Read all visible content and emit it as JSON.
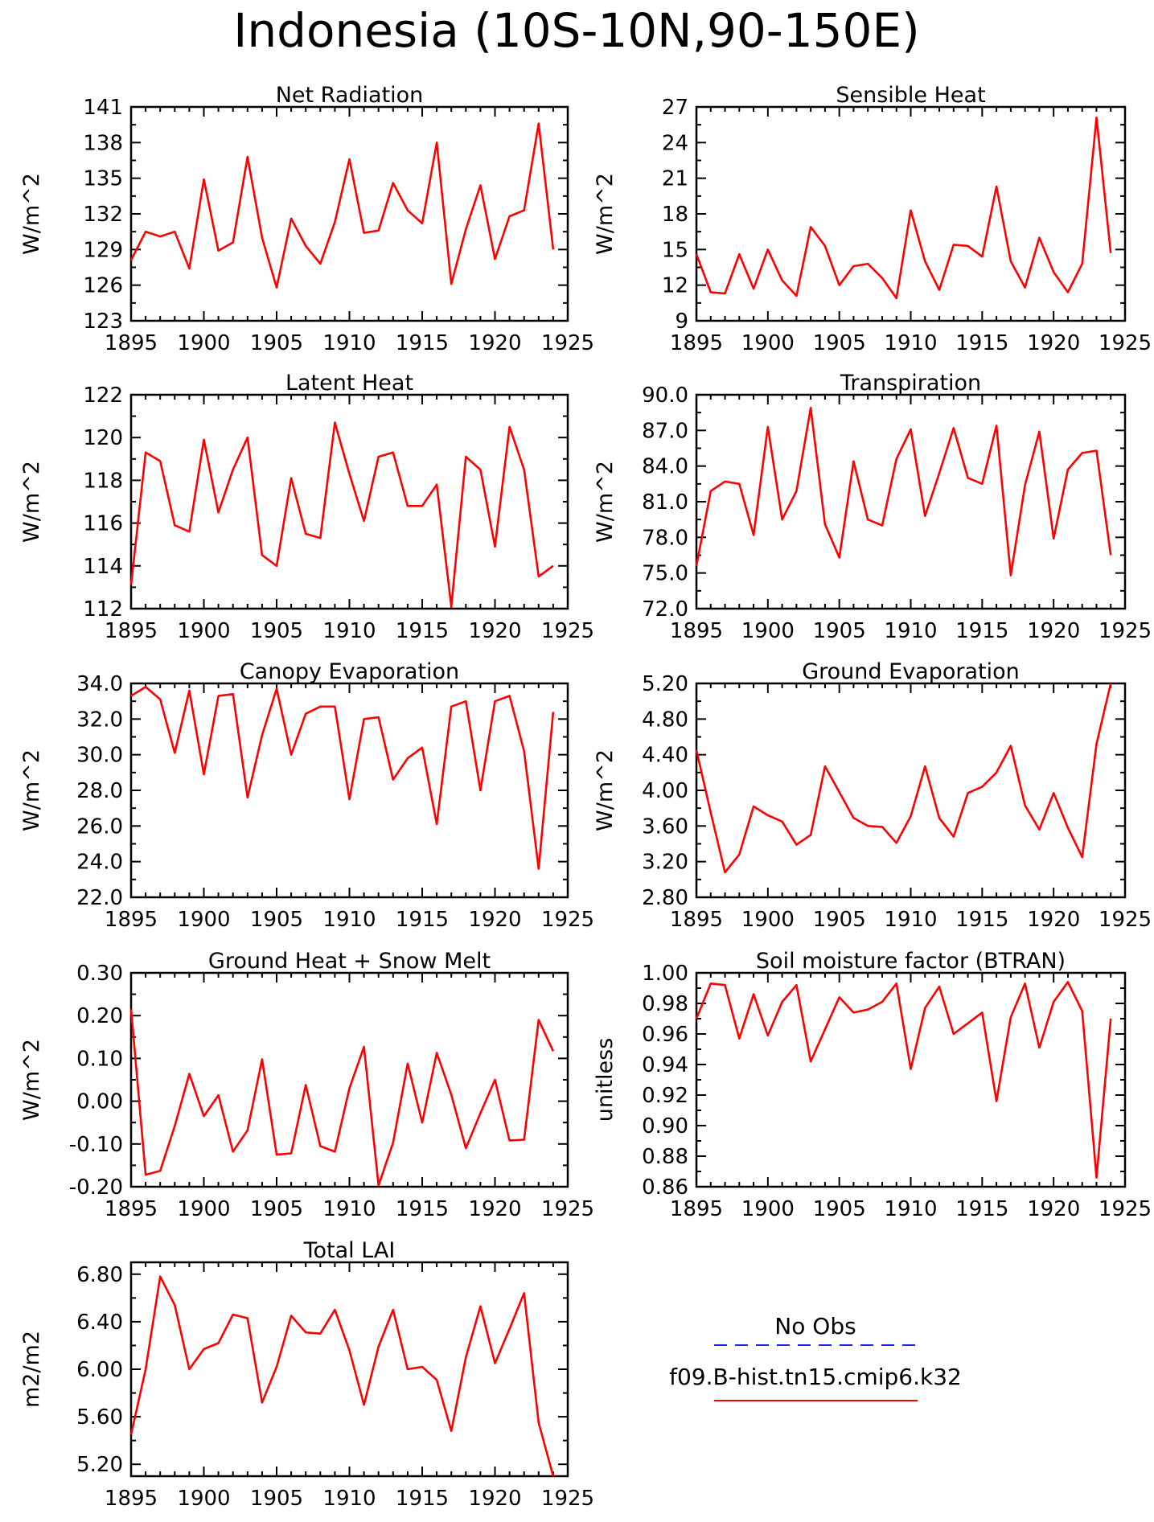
{
  "title": "Indonesia (10S-10N,90-150E)",
  "legend": [
    {
      "label": "No Obs",
      "color": "#1f1fff",
      "dash": true
    },
    {
      "label": "f09.B-hist.tn15.cmip6.k32",
      "color": "#ff0000",
      "dash": false
    }
  ],
  "series_color": "#ff0000",
  "chart_data": [
    {
      "type": "line",
      "title": "Net Radiation",
      "ylabel": "W/m^2",
      "xlim": [
        1895,
        1925
      ],
      "ylim": [
        123,
        141
      ],
      "xticks": [
        1895,
        1900,
        1905,
        1910,
        1915,
        1920,
        1925
      ],
      "xtick_labels": [
        "1895",
        "1900",
        "1905",
        "1910",
        "1915",
        "1920",
        "1925"
      ],
      "yticks": [
        123,
        126,
        129,
        132,
        135,
        138,
        141
      ],
      "ytick_labels": [
        "123",
        "126",
        "129",
        "132",
        "135",
        "138",
        "141"
      ],
      "x": [
        1895,
        1896,
        1897,
        1898,
        1899,
        1900,
        1901,
        1902,
        1903,
        1904,
        1905,
        1906,
        1907,
        1908,
        1909,
        1910,
        1911,
        1912,
        1913,
        1914,
        1915,
        1916,
        1917,
        1918,
        1919,
        1920,
        1921,
        1922,
        1923,
        1924
      ],
      "y": [
        128.1,
        130.5,
        130.1,
        130.5,
        127.4,
        134.9,
        128.9,
        129.6,
        136.8,
        130.0,
        125.8,
        131.6,
        129.3,
        127.8,
        131.3,
        136.6,
        130.4,
        130.6,
        134.6,
        132.3,
        131.2,
        138.0,
        126.1,
        130.7,
        134.4,
        128.2,
        131.8,
        132.3,
        139.6,
        129.0
      ]
    },
    {
      "type": "line",
      "title": "Sensible Heat",
      "ylabel": "W/m^2",
      "xlim": [
        1895,
        1925
      ],
      "ylim": [
        9,
        27
      ],
      "xticks": [
        1895,
        1900,
        1905,
        1910,
        1915,
        1920,
        1925
      ],
      "xtick_labels": [
        "1895",
        "1900",
        "1905",
        "1910",
        "1915",
        "1920",
        "1925"
      ],
      "yticks": [
        9,
        12,
        15,
        18,
        21,
        24,
        27
      ],
      "ytick_labels": [
        "9",
        "12",
        "15",
        "18",
        "21",
        "24",
        "27"
      ],
      "x": [
        1895,
        1896,
        1897,
        1898,
        1899,
        1900,
        1901,
        1902,
        1903,
        1904,
        1905,
        1906,
        1907,
        1908,
        1909,
        1910,
        1911,
        1912,
        1913,
        1914,
        1915,
        1916,
        1917,
        1918,
        1919,
        1920,
        1921,
        1922,
        1923,
        1924
      ],
      "y": [
        14.6,
        11.4,
        11.3,
        14.6,
        11.7,
        15.0,
        12.4,
        11.1,
        16.9,
        15.3,
        12.0,
        13.6,
        13.8,
        12.6,
        10.9,
        18.3,
        14.0,
        11.6,
        15.4,
        15.3,
        14.4,
        20.3,
        14.0,
        11.8,
        16.0,
        13.1,
        11.4,
        13.8,
        26.1,
        14.7
      ]
    },
    {
      "type": "line",
      "title": "Latent Heat",
      "ylabel": "W/m^2",
      "xlim": [
        1895,
        1925
      ],
      "ylim": [
        112,
        122
      ],
      "xticks": [
        1895,
        1900,
        1905,
        1910,
        1915,
        1920,
        1925
      ],
      "xtick_labels": [
        "1895",
        "1900",
        "1905",
        "1910",
        "1915",
        "1920",
        "1925"
      ],
      "yticks": [
        112,
        114,
        116,
        118,
        120,
        122
      ],
      "ytick_labels": [
        "112",
        "114",
        "116",
        "118",
        "120",
        "122"
      ],
      "x": [
        1895,
        1896,
        1897,
        1898,
        1899,
        1900,
        1901,
        1902,
        1903,
        1904,
        1905,
        1906,
        1907,
        1908,
        1909,
        1910,
        1911,
        1912,
        1913,
        1914,
        1915,
        1916,
        1917,
        1918,
        1919,
        1920,
        1921,
        1922,
        1923,
        1924
      ],
      "y": [
        113.1,
        119.3,
        118.9,
        115.9,
        115.6,
        119.9,
        116.5,
        118.5,
        120.0,
        114.5,
        114.0,
        118.1,
        115.5,
        115.3,
        120.7,
        118.3,
        116.1,
        119.1,
        119.3,
        116.8,
        116.8,
        117.8,
        112.1,
        119.1,
        118.5,
        114.9,
        120.5,
        118.5,
        113.5,
        114.0
      ]
    },
    {
      "type": "line",
      "title": "Transpiration",
      "ylabel": "W/m^2",
      "xlim": [
        1895,
        1925
      ],
      "ylim": [
        72,
        90
      ],
      "xticks": [
        1895,
        1900,
        1905,
        1910,
        1915,
        1920,
        1925
      ],
      "xtick_labels": [
        "1895",
        "1900",
        "1905",
        "1910",
        "1915",
        "1920",
        "1925"
      ],
      "yticks": [
        72,
        75,
        78,
        81,
        84,
        87,
        90
      ],
      "ytick_labels": [
        "72.0",
        "75.0",
        "78.0",
        "81.0",
        "84.0",
        "87.0",
        "90.0"
      ],
      "x": [
        1895,
        1896,
        1897,
        1898,
        1899,
        1900,
        1901,
        1902,
        1903,
        1904,
        1905,
        1906,
        1907,
        1908,
        1909,
        1910,
        1911,
        1912,
        1913,
        1914,
        1915,
        1916,
        1917,
        1918,
        1919,
        1920,
        1921,
        1922,
        1923,
        1924
      ],
      "y": [
        75.6,
        81.9,
        82.7,
        82.5,
        78.2,
        87.3,
        79.5,
        81.9,
        88.9,
        79.1,
        76.3,
        84.4,
        79.5,
        79.0,
        84.6,
        87.1,
        79.8,
        83.4,
        87.2,
        83.0,
        82.5,
        87.4,
        74.8,
        82.4,
        86.9,
        77.9,
        83.7,
        85.1,
        85.3,
        76.5
      ]
    },
    {
      "type": "line",
      "title": "Canopy Evaporation",
      "ylabel": "W/m^2",
      "xlim": [
        1895,
        1925
      ],
      "ylim": [
        22,
        34
      ],
      "xticks": [
        1895,
        1900,
        1905,
        1910,
        1915,
        1920,
        1925
      ],
      "xtick_labels": [
        "1895",
        "1900",
        "1905",
        "1910",
        "1915",
        "1920",
        "1925"
      ],
      "yticks": [
        22,
        24,
        26,
        28,
        30,
        32,
        34
      ],
      "ytick_labels": [
        "22.0",
        "24.0",
        "26.0",
        "28.0",
        "30.0",
        "32.0",
        "34.0"
      ],
      "x": [
        1895,
        1896,
        1897,
        1898,
        1899,
        1900,
        1901,
        1902,
        1903,
        1904,
        1905,
        1906,
        1907,
        1908,
        1909,
        1910,
        1911,
        1912,
        1913,
        1914,
        1915,
        1916,
        1917,
        1918,
        1919,
        1920,
        1921,
        1922,
        1923,
        1924
      ],
      "y": [
        33.3,
        33.8,
        33.1,
        30.1,
        33.6,
        28.9,
        33.3,
        33.4,
        27.6,
        31.1,
        33.7,
        30.0,
        32.3,
        32.7,
        32.7,
        27.5,
        32.0,
        32.1,
        28.6,
        29.8,
        30.4,
        26.1,
        32.7,
        33.0,
        28.0,
        33.0,
        33.3,
        30.2,
        23.6,
        32.4
      ]
    },
    {
      "type": "line",
      "title": "Ground Evaporation",
      "ylabel": "W/m^2",
      "xlim": [
        1895,
        1925
      ],
      "ylim": [
        2.8,
        5.2
      ],
      "xticks": [
        1895,
        1900,
        1905,
        1910,
        1915,
        1920,
        1925
      ],
      "xtick_labels": [
        "1895",
        "1900",
        "1905",
        "1910",
        "1915",
        "1920",
        "1925"
      ],
      "yticks": [
        2.8,
        3.2,
        3.6,
        4.0,
        4.4,
        4.8,
        5.2
      ],
      "ytick_labels": [
        "2.80",
        "3.20",
        "3.60",
        "4.00",
        "4.40",
        "4.80",
        "5.20"
      ],
      "x": [
        1895,
        1896,
        1897,
        1898,
        1899,
        1900,
        1901,
        1902,
        1903,
        1904,
        1905,
        1906,
        1907,
        1908,
        1909,
        1910,
        1911,
        1912,
        1913,
        1914,
        1915,
        1916,
        1917,
        1918,
        1919,
        1920,
        1921,
        1922,
        1923,
        1924
      ],
      "y": [
        4.45,
        3.75,
        3.08,
        3.28,
        3.82,
        3.72,
        3.65,
        3.39,
        3.5,
        4.27,
        3.98,
        3.69,
        3.6,
        3.59,
        3.41,
        3.71,
        4.27,
        3.69,
        3.48,
        3.97,
        4.04,
        4.2,
        4.5,
        3.83,
        3.56,
        3.97,
        3.58,
        3.25,
        4.52,
        5.2
      ]
    },
    {
      "type": "line",
      "title": "Ground Heat + Snow Melt",
      "ylabel": "W/m^2",
      "xlim": [
        1895,
        1925
      ],
      "ylim": [
        -0.2,
        0.3
      ],
      "xticks": [
        1895,
        1900,
        1905,
        1910,
        1915,
        1920,
        1925
      ],
      "xtick_labels": [
        "1895",
        "1900",
        "1905",
        "1910",
        "1915",
        "1920",
        "1925"
      ],
      "yticks": [
        -0.2,
        -0.1,
        0.0,
        0.1,
        0.2,
        0.3
      ],
      "ytick_labels": [
        "-0.20",
        "-0.10",
        "0.00",
        "0.10",
        "0.20",
        "0.30"
      ],
      "x": [
        1895,
        1896,
        1897,
        1898,
        1899,
        1900,
        1901,
        1902,
        1903,
        1904,
        1905,
        1906,
        1907,
        1908,
        1909,
        1910,
        1911,
        1912,
        1913,
        1914,
        1915,
        1916,
        1917,
        1918,
        1919,
        1920,
        1921,
        1922,
        1923,
        1924
      ],
      "y": [
        0.215,
        -0.172,
        -0.163,
        -0.058,
        0.064,
        -0.035,
        0.014,
        -0.118,
        -0.068,
        0.098,
        -0.125,
        -0.122,
        0.038,
        -0.105,
        -0.118,
        0.03,
        0.127,
        -0.197,
        -0.097,
        0.088,
        -0.05,
        0.113,
        0.015,
        -0.11,
        -0.028,
        0.05,
        -0.092,
        -0.09,
        0.19,
        0.117
      ]
    },
    {
      "type": "line",
      "title": "Soil moisture factor (BTRAN)",
      "ylabel": "unitless",
      "xlim": [
        1895,
        1925
      ],
      "ylim": [
        0.86,
        1.0
      ],
      "xticks": [
        1895,
        1900,
        1905,
        1910,
        1915,
        1920,
        1925
      ],
      "xtick_labels": [
        "1895",
        "1900",
        "1905",
        "1910",
        "1915",
        "1920",
        "1925"
      ],
      "yticks": [
        0.86,
        0.88,
        0.9,
        0.92,
        0.94,
        0.96,
        0.98,
        1.0
      ],
      "ytick_labels": [
        "0.86",
        "0.88",
        "0.90",
        "0.92",
        "0.94",
        "0.96",
        "0.98",
        "1.00"
      ],
      "x": [
        1895,
        1896,
        1897,
        1898,
        1899,
        1900,
        1901,
        1902,
        1903,
        1904,
        1905,
        1906,
        1907,
        1908,
        1909,
        1910,
        1911,
        1912,
        1913,
        1914,
        1915,
        1916,
        1917,
        1918,
        1919,
        1920,
        1921,
        1922,
        1923,
        1924
      ],
      "y": [
        0.97,
        0.993,
        0.992,
        0.957,
        0.986,
        0.959,
        0.981,
        0.992,
        0.942,
        0.963,
        0.984,
        0.974,
        0.976,
        0.981,
        0.993,
        0.937,
        0.977,
        0.991,
        0.96,
        0.967,
        0.974,
        0.916,
        0.971,
        0.993,
        0.951,
        0.981,
        0.994,
        0.975,
        0.866,
        0.97
      ]
    },
    {
      "type": "line",
      "title": "Total LAI",
      "ylabel": "m2/m2",
      "xlim": [
        1895,
        1925
      ],
      "ylim": [
        5.1,
        6.9
      ],
      "xticks": [
        1895,
        1900,
        1905,
        1910,
        1915,
        1920,
        1925
      ],
      "xtick_labels": [
        "1895",
        "1900",
        "1905",
        "1910",
        "1915",
        "1920",
        "1925"
      ],
      "yticks": [
        5.2,
        5.6,
        6.0,
        6.4,
        6.8
      ],
      "ytick_labels": [
        "5.20",
        "5.60",
        "6.00",
        "6.40",
        "6.80"
      ],
      "x": [
        1895,
        1896,
        1897,
        1898,
        1899,
        1900,
        1901,
        1902,
        1903,
        1904,
        1905,
        1906,
        1907,
        1908,
        1909,
        1910,
        1911,
        1912,
        1913,
        1914,
        1915,
        1916,
        1917,
        1918,
        1919,
        1920,
        1921,
        1922,
        1923,
        1924
      ],
      "y": [
        5.45,
        6.0,
        6.78,
        6.54,
        6.0,
        6.17,
        6.22,
        6.46,
        6.43,
        5.72,
        6.02,
        6.45,
        6.31,
        6.3,
        6.5,
        6.16,
        5.7,
        6.19,
        6.5,
        6.0,
        6.02,
        5.91,
        5.48,
        6.1,
        6.53,
        6.05,
        6.34,
        6.64,
        5.55,
        5.1
      ]
    }
  ]
}
